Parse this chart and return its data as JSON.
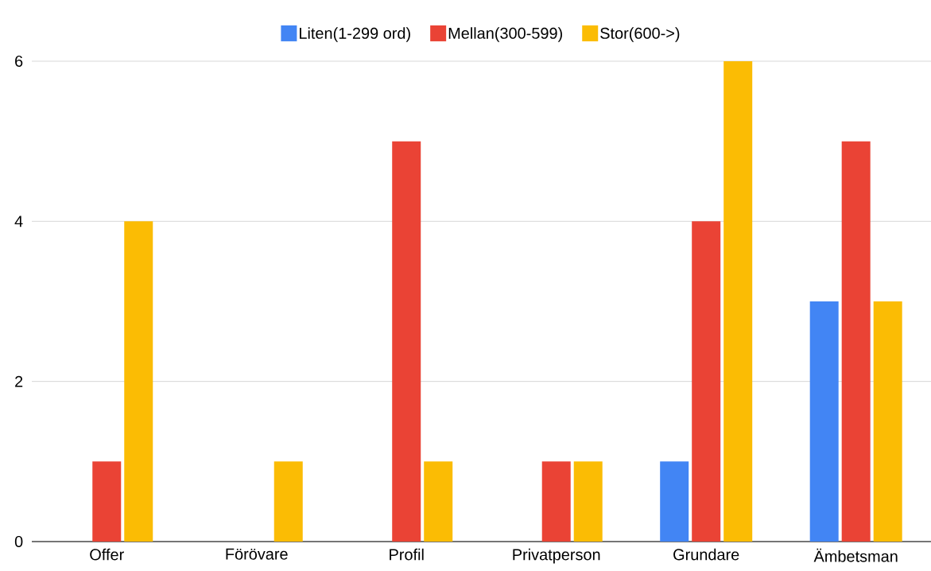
{
  "chart_data": {
    "type": "bar",
    "categories": [
      "Offer",
      "Förövare",
      "Profil",
      "Privatperson",
      "Grundare",
      "Ämbetsman"
    ],
    "series": [
      {
        "name": "Liten(1-299 ord)",
        "color": "#4285f4",
        "values": [
          0,
          0,
          0,
          0,
          1,
          3
        ]
      },
      {
        "name": "Mellan(300-599)",
        "color": "#ea4335",
        "values": [
          1,
          0,
          5,
          1,
          4,
          5
        ]
      },
      {
        "name": "Stor(600->)",
        "color": "#fbbc04",
        "values": [
          4,
          1,
          1,
          1,
          6,
          3
        ]
      }
    ],
    "ylim": [
      0,
      6
    ],
    "yticks": [
      0,
      2,
      4,
      6
    ],
    "grid": "y",
    "legend": "top"
  }
}
